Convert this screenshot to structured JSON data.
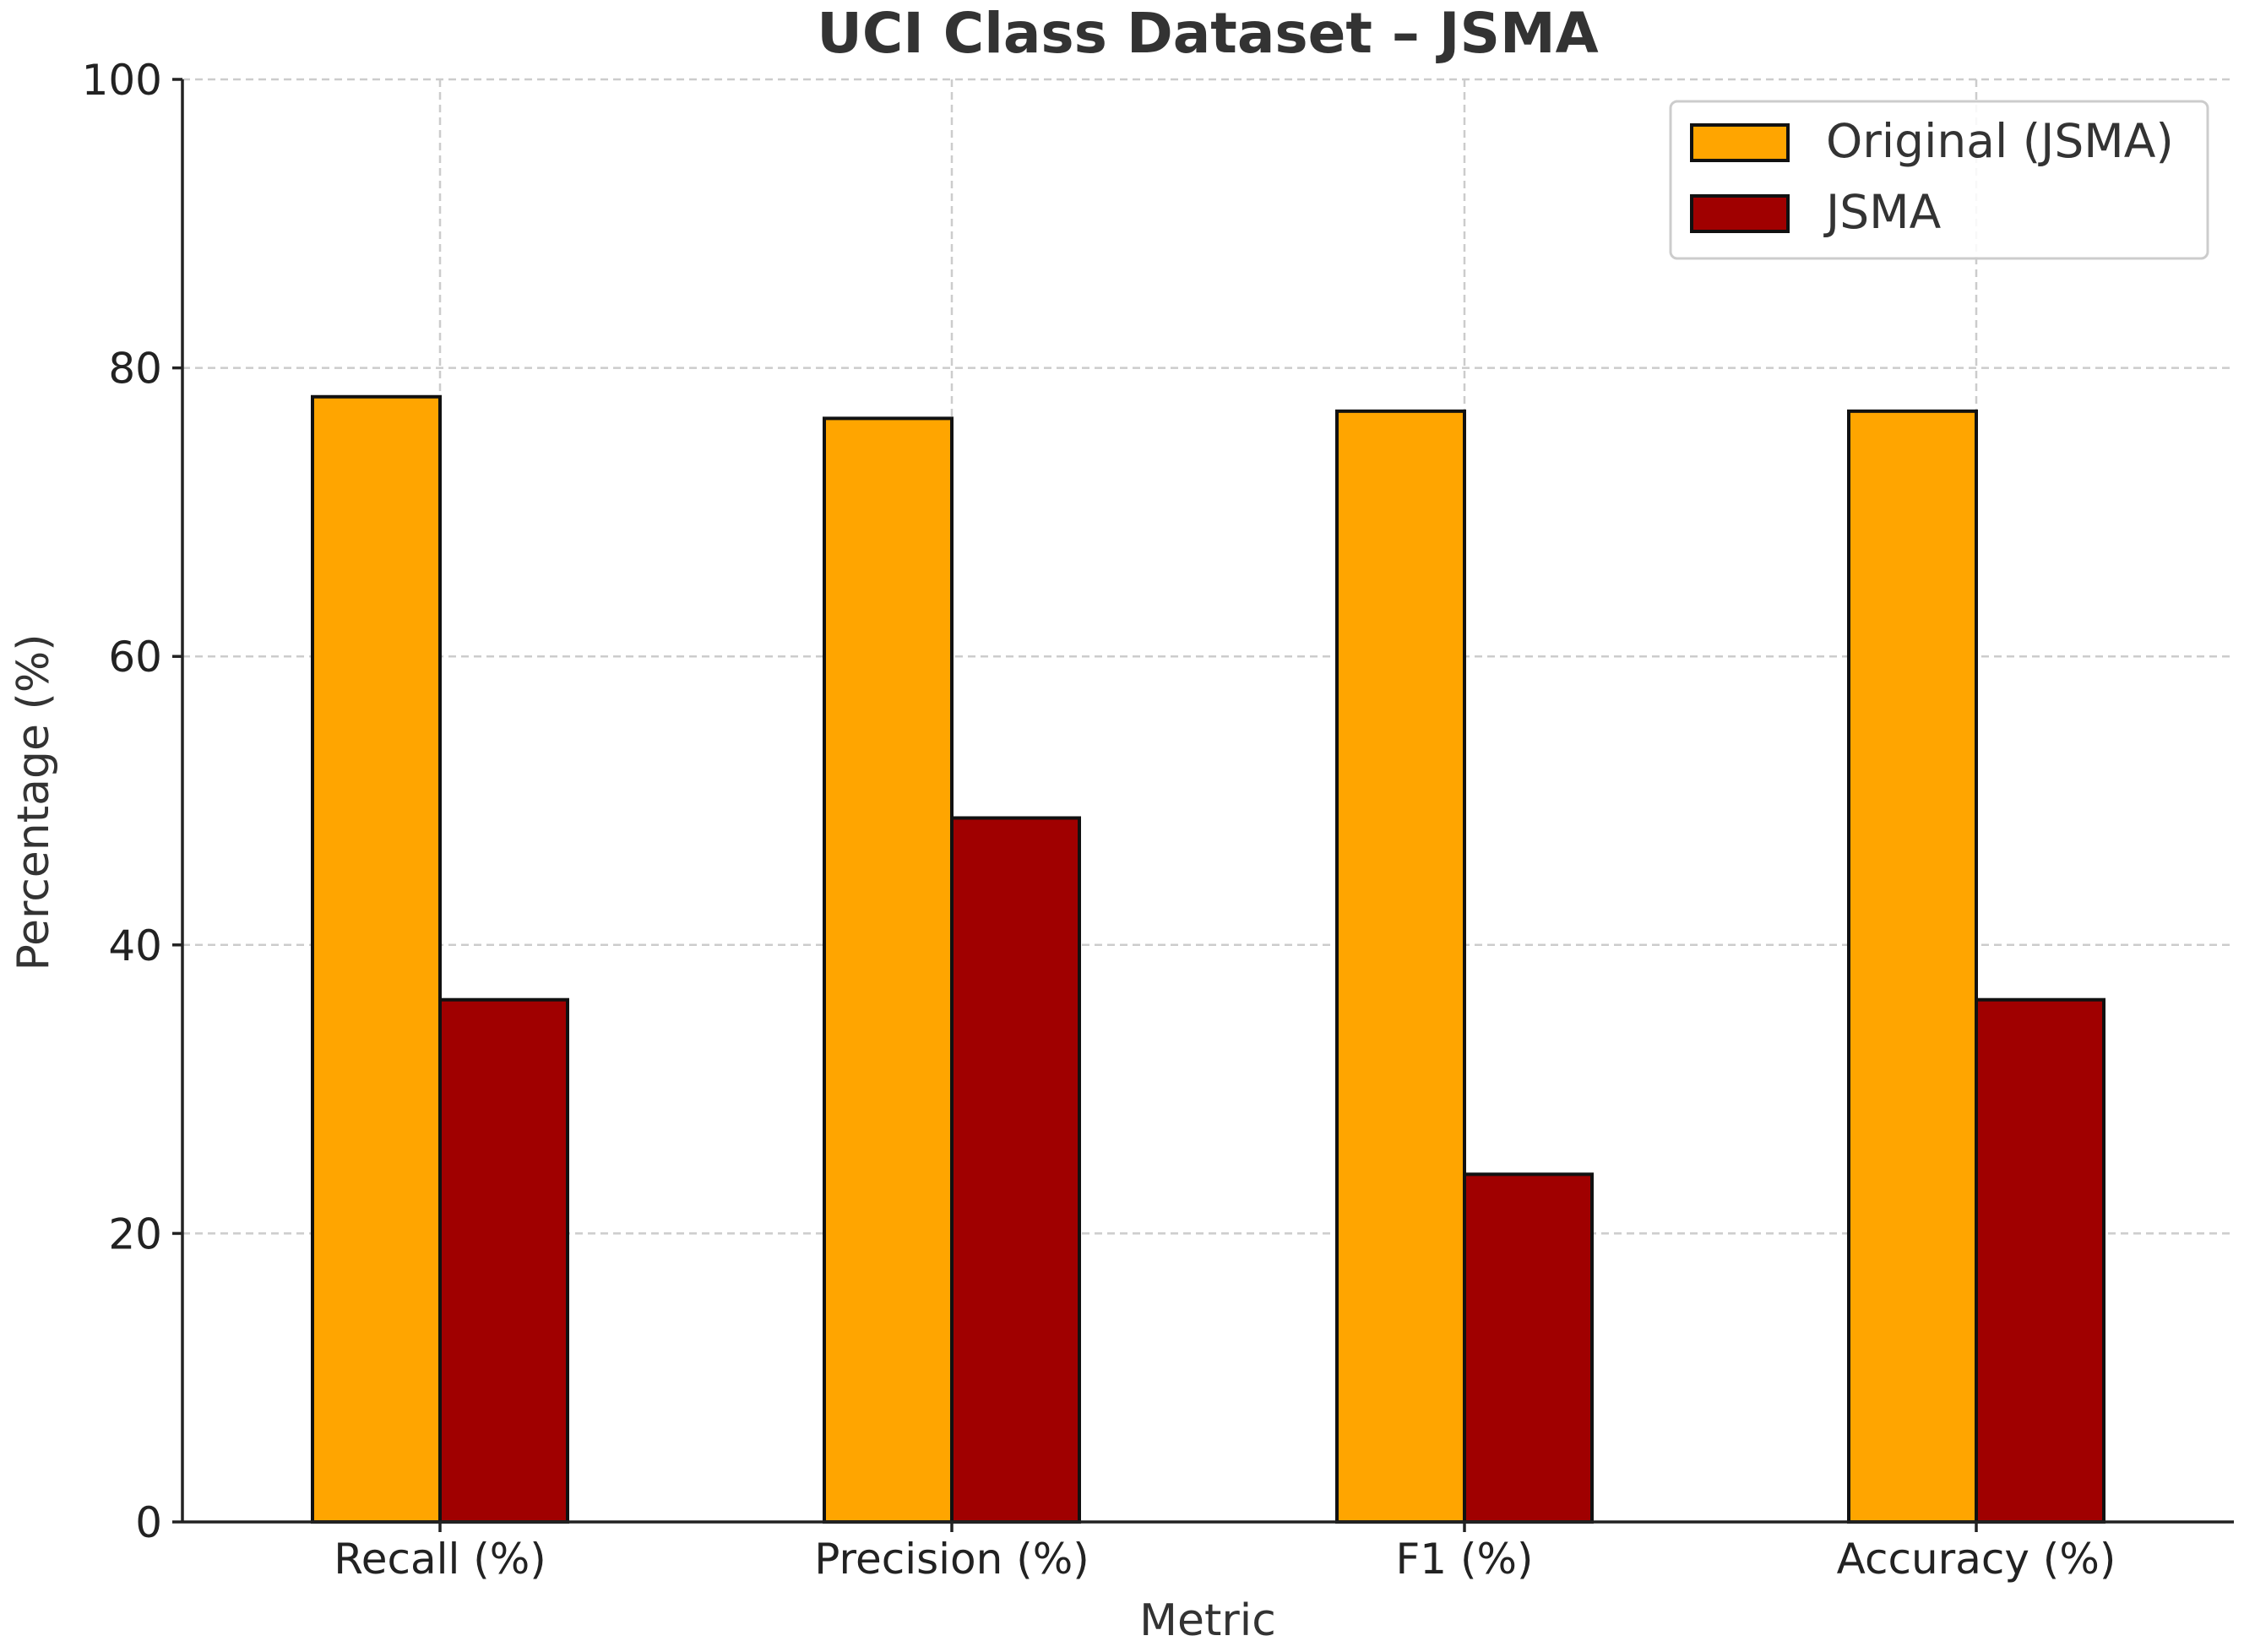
{
  "chart_data": {
    "type": "bar",
    "title": "UCI Class Dataset – JSMA",
    "xlabel": "Metric",
    "ylabel": "Percentage (%)",
    "categories": [
      "Recall (%)",
      "Precision (%)",
      "F1 (%)",
      "Accuracy (%)"
    ],
    "series": [
      {
        "name": "Original (JSMA)",
        "color": "#FFA500",
        "values": [
          78,
          76.5,
          77,
          77
        ]
      },
      {
        "name": "JSMA",
        "color": "#A00000",
        "values": [
          36.2,
          48.8,
          24.1,
          36.2
        ]
      }
    ],
    "ylim": [
      0,
      100
    ],
    "yticks": [
      0,
      20,
      40,
      60,
      80,
      100
    ],
    "grid": true,
    "legend_position": "top-right"
  }
}
